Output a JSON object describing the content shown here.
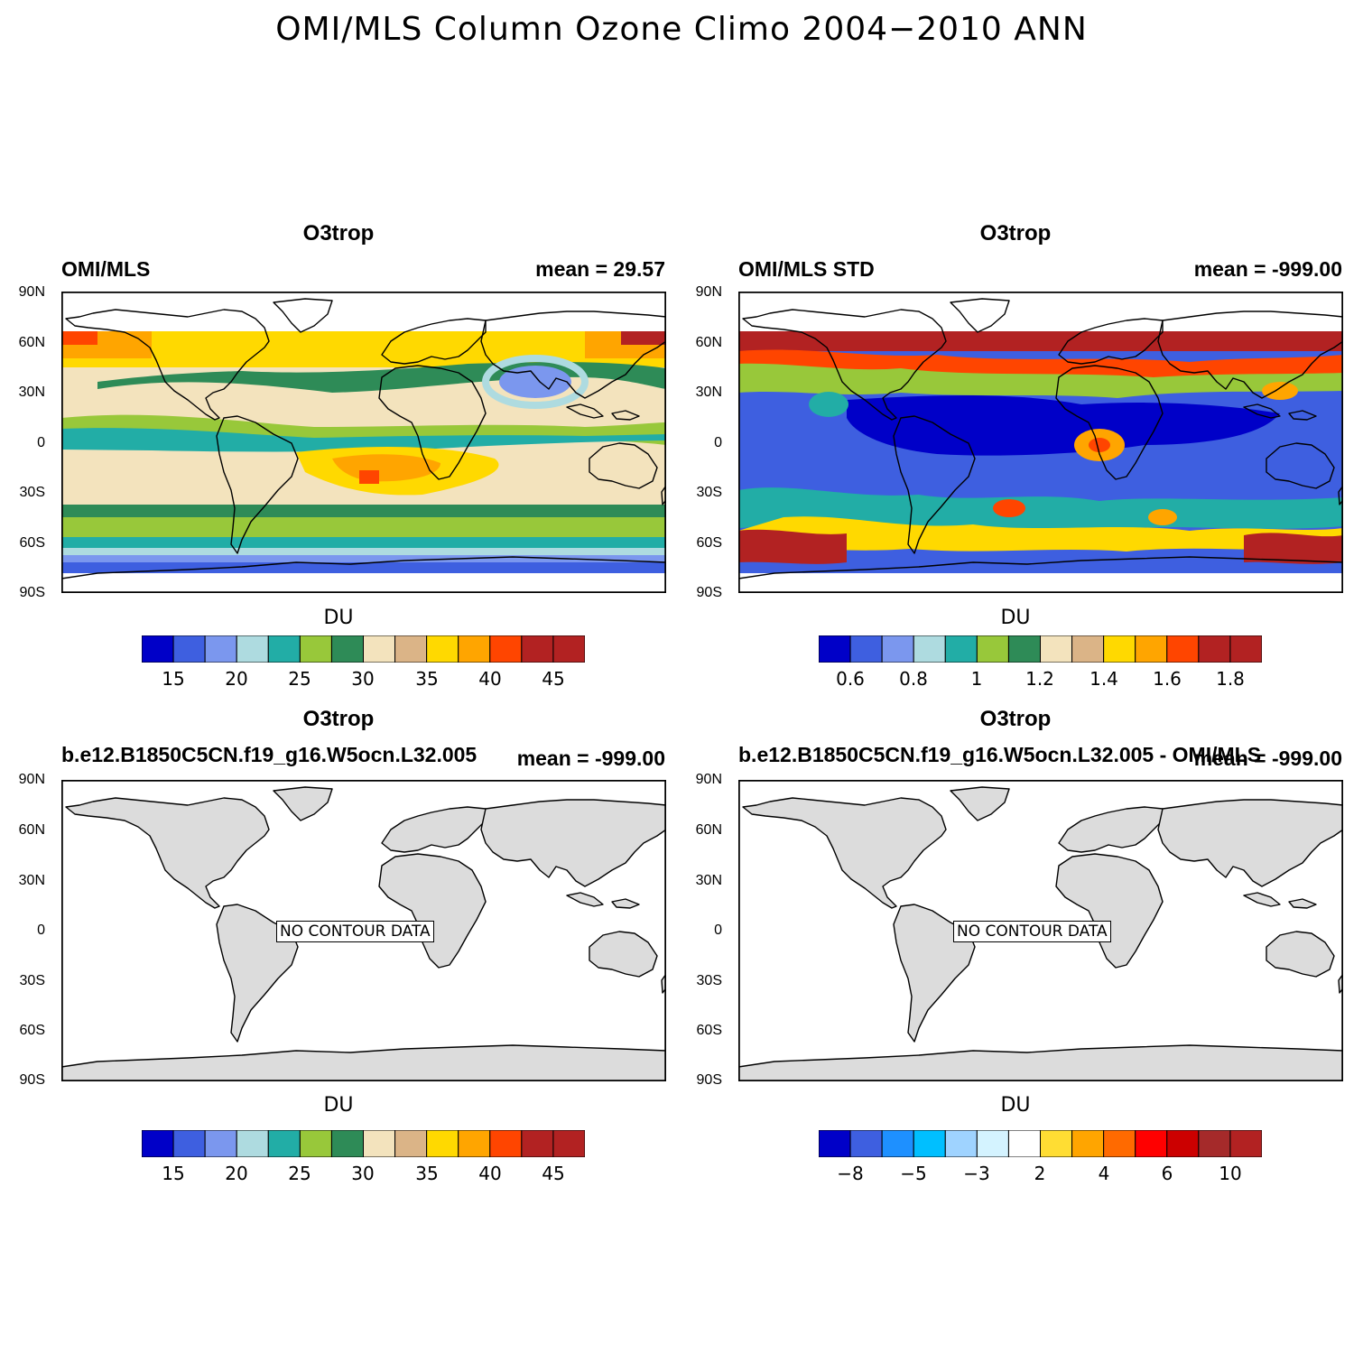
{
  "main_title": "OMI/MLS Column Ozone Climo 2004−2010 ANN",
  "lat_ticks": [
    "90N",
    "60N",
    "30N",
    "0",
    "30S",
    "60S",
    "90S"
  ],
  "palette_du": [
    "#0000c8",
    "#3e5fe0",
    "#7b97ee",
    "#aedbe0",
    "#22ada6",
    "#98c83a",
    "#2e8b57",
    "#f3e3bd",
    "#dbb487",
    "#ffd900",
    "#ffa500",
    "#ff4500",
    "#b22222",
    "#b22222"
  ],
  "palette_std": [
    "#0000c8",
    "#3e5fe0",
    "#7b97ee",
    "#aedbe0",
    "#22ada6",
    "#98c83a",
    "#2e8b57",
    "#f3e3bd",
    "#dbb487",
    "#ffd900",
    "#ffa500",
    "#ff4500",
    "#b22222",
    "#b22222"
  ],
  "palette_diff": [
    "#0000c8",
    "#3e5fe0",
    "#1e90ff",
    "#00bfff",
    "#9fd3ff",
    "#d4f3ff",
    "#ffffff",
    "#ffdd33",
    "#ffa500",
    "#ff6a00",
    "#ff0000",
    "#cc0000",
    "#a52a2a",
    "#b22222"
  ],
  "panels": [
    {
      "title": "O3trop",
      "left_label": "OMI/MLS",
      "right_label": "mean =  29.57",
      "colorbar_label": "DU",
      "colorbar_ticks": [
        "15",
        "20",
        "25",
        "30",
        "35",
        "40",
        "45"
      ],
      "no_contour_text": ""
    },
    {
      "title": "O3trop",
      "left_label": "OMI/MLS STD",
      "right_label": "mean = -999.00",
      "colorbar_label": "DU",
      "colorbar_ticks": [
        "0.6",
        "0.8",
        "1",
        "1.2",
        "1.4",
        "1.6",
        "1.8"
      ],
      "no_contour_text": ""
    },
    {
      "title": "O3trop",
      "left_label": "b.e12.B1850C5CN.f19_g16.W5ocn.L32.005",
      "right_label": "mean = -999.00",
      "colorbar_label": "DU",
      "colorbar_ticks": [
        "15",
        "20",
        "25",
        "30",
        "35",
        "40",
        "45"
      ],
      "no_contour_text": "NO CONTOUR DATA"
    },
    {
      "title": "O3trop",
      "left_label": "b.e12.B1850C5CN.f19_g16.W5ocn.L32.005 - OMI/MLS",
      "right_label": "mean = -999.00",
      "colorbar_label": "DU",
      "colorbar_ticks": [
        "−8",
        "−5",
        "−3",
        "2",
        "4",
        "6",
        "10"
      ],
      "no_contour_text": "NO CONTOUR DATA"
    }
  ]
}
